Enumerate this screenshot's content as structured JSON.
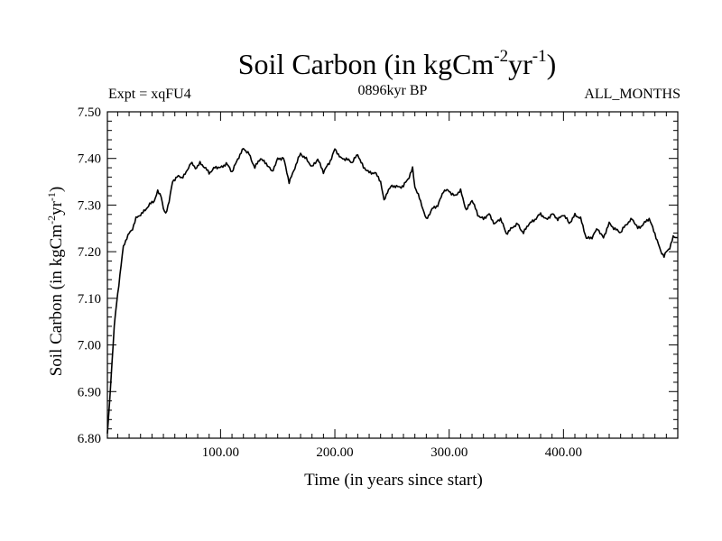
{
  "chart_data": {
    "type": "line",
    "title_main": "Soil Carbon (in kgCm",
    "title_sup1": "-2",
    "title_mid": "yr",
    "title_sup2": "-1",
    "title_end": ")",
    "subtitle_left": "Expt = xqFU4",
    "subtitle_center": "0896kyr BP",
    "subtitle_right": "ALL_MONTHS",
    "xlabel": "Time (in years since start)",
    "ylabel": "Soil Carbon (in kgCm-2yr-1)",
    "ylabel_main": "Soil Carbon (in kgCm",
    "ylabel_sup1": "-2",
    "ylabel_mid": "yr",
    "ylabel_sup2": "-1",
    "ylabel_end": ")",
    "xlim": [
      1,
      500
    ],
    "ylim": [
      6.8,
      7.5
    ],
    "xticks": [
      100,
      200,
      300,
      400
    ],
    "xtick_labels": [
      "100.00",
      "200.00",
      "300.00",
      "400.00"
    ],
    "yticks": [
      6.8,
      6.9,
      7.0,
      7.1,
      7.2,
      7.3,
      7.4,
      7.5
    ],
    "ytick_labels": [
      "6.80",
      "6.90",
      "7.00",
      "7.10",
      "7.20",
      "7.30",
      "7.40",
      "7.50"
    ],
    "line_color": "#000000",
    "series": [
      {
        "name": "Soil Carbon",
        "x": [
          1,
          3,
          5,
          7,
          9,
          11,
          13,
          15,
          18,
          20,
          23,
          26,
          30,
          34,
          38,
          42,
          45,
          48,
          50,
          52,
          55,
          58,
          62,
          66,
          70,
          74,
          78,
          82,
          86,
          90,
          95,
          100,
          105,
          110,
          115,
          120,
          125,
          130,
          135,
          140,
          145,
          150,
          155,
          160,
          165,
          170,
          175,
          180,
          185,
          190,
          195,
          200,
          205,
          210,
          215,
          220,
          225,
          230,
          235,
          240,
          243,
          246,
          250,
          255,
          260,
          265,
          268,
          270,
          273,
          276,
          280,
          285,
          290,
          295,
          300,
          305,
          310,
          315,
          320,
          325,
          330,
          335,
          340,
          345,
          350,
          355,
          360,
          365,
          370,
          375,
          380,
          385,
          390,
          395,
          400,
          405,
          410,
          415,
          420,
          425,
          430,
          435,
          440,
          445,
          450,
          455,
          460,
          465,
          470,
          475,
          480,
          485,
          488,
          490,
          493,
          496,
          500
        ],
        "y": [
          6.81,
          6.88,
          6.96,
          7.04,
          7.09,
          7.13,
          7.17,
          7.21,
          7.23,
          7.24,
          7.25,
          7.27,
          7.28,
          7.29,
          7.3,
          7.31,
          7.33,
          7.32,
          7.29,
          7.28,
          7.31,
          7.35,
          7.36,
          7.36,
          7.37,
          7.39,
          7.38,
          7.39,
          7.38,
          7.37,
          7.38,
          7.38,
          7.39,
          7.37,
          7.4,
          7.42,
          7.41,
          7.38,
          7.4,
          7.39,
          7.37,
          7.4,
          7.4,
          7.35,
          7.38,
          7.41,
          7.4,
          7.38,
          7.4,
          7.37,
          7.39,
          7.42,
          7.4,
          7.4,
          7.39,
          7.41,
          7.38,
          7.37,
          7.37,
          7.35,
          7.31,
          7.33,
          7.34,
          7.34,
          7.34,
          7.36,
          7.38,
          7.34,
          7.32,
          7.3,
          7.27,
          7.29,
          7.3,
          7.33,
          7.33,
          7.32,
          7.33,
          7.29,
          7.31,
          7.28,
          7.27,
          7.28,
          7.26,
          7.27,
          7.24,
          7.25,
          7.26,
          7.24,
          7.26,
          7.27,
          7.28,
          7.27,
          7.28,
          7.27,
          7.28,
          7.26,
          7.28,
          7.27,
          7.23,
          7.23,
          7.25,
          7.23,
          7.26,
          7.25,
          7.24,
          7.26,
          7.27,
          7.25,
          7.26,
          7.27,
          7.24,
          7.2,
          7.19,
          7.2,
          7.21,
          7.23,
          7.23
        ]
      }
    ]
  }
}
